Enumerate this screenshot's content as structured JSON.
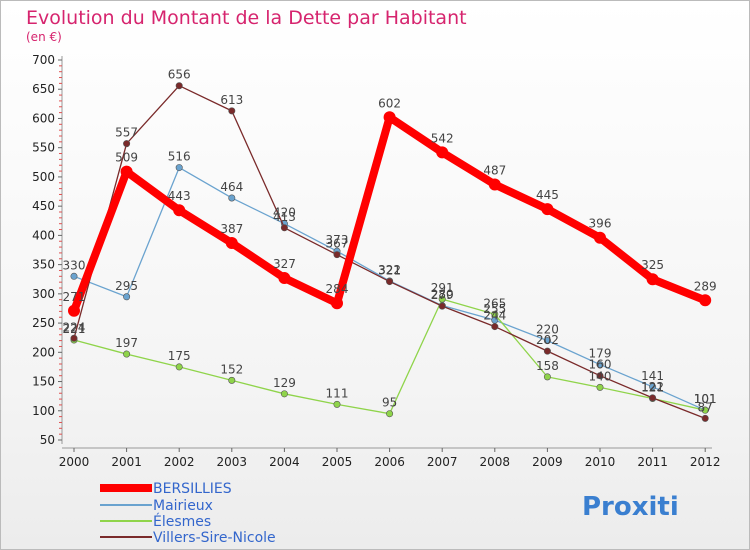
{
  "chart_data": {
    "type": "line",
    "title": "Evolution du Montant de la Dette par Habitant",
    "subtitle": "(en €)",
    "xlabel": "",
    "ylabel": "",
    "categories": [
      "2000",
      "2001",
      "2002",
      "2003",
      "2004",
      "2005",
      "2006",
      "2007",
      "2008",
      "2009",
      "2010",
      "2011",
      "2012"
    ],
    "yticks": [
      "50",
      "100",
      "150",
      "200",
      "250",
      "300",
      "350",
      "400",
      "450",
      "500",
      "550",
      "600",
      "650",
      "700"
    ],
    "ylim": [
      50,
      700
    ],
    "grid": false,
    "legend_position": "bottom-left",
    "series": [
      {
        "name": "BERSILLIES",
        "color": "#ff0000",
        "values": [
          271,
          509,
          443,
          387,
          327,
          284,
          602,
          542,
          487,
          445,
          396,
          325,
          289
        ],
        "labels": [
          "271",
          "509",
          "443",
          "387",
          "327",
          "284",
          "602",
          "542",
          "487",
          "445",
          "396",
          "325",
          "289"
        ]
      },
      {
        "name": "Mairieux",
        "color": "#6aa3cf",
        "values": [
          330,
          295,
          516,
          464,
          420,
          373,
          322,
          280,
          255,
          220,
          179,
          141,
          101
        ],
        "labels": [
          "330",
          "295",
          "516",
          "464",
          "420",
          "373",
          "322",
          "280",
          "255",
          "220",
          "179",
          "141",
          "101"
        ]
      },
      {
        "name": "Élesmes",
        "color": "#8fd44a",
        "values": [
          221,
          197,
          175,
          152,
          129,
          111,
          95,
          291,
          265,
          158,
          140,
          121,
          101
        ],
        "labels": [
          "221",
          "197",
          "175",
          "152",
          "129",
          "111",
          "95",
          "291",
          "265",
          "158",
          "140",
          "121",
          "101"
        ]
      },
      {
        "name": "Villers-Sire-Nicole",
        "color": "#7a2a2a",
        "values": [
          224,
          557,
          656,
          613,
          413,
          367,
          321,
          279,
          244,
          202,
          160,
          122,
          87
        ],
        "labels": [
          "224",
          "557",
          "656",
          "613",
          "413",
          "367",
          "321",
          "279",
          "244",
          "202",
          "160",
          "122",
          "87"
        ]
      }
    ]
  },
  "logo": {
    "text": "Proxiti"
  }
}
